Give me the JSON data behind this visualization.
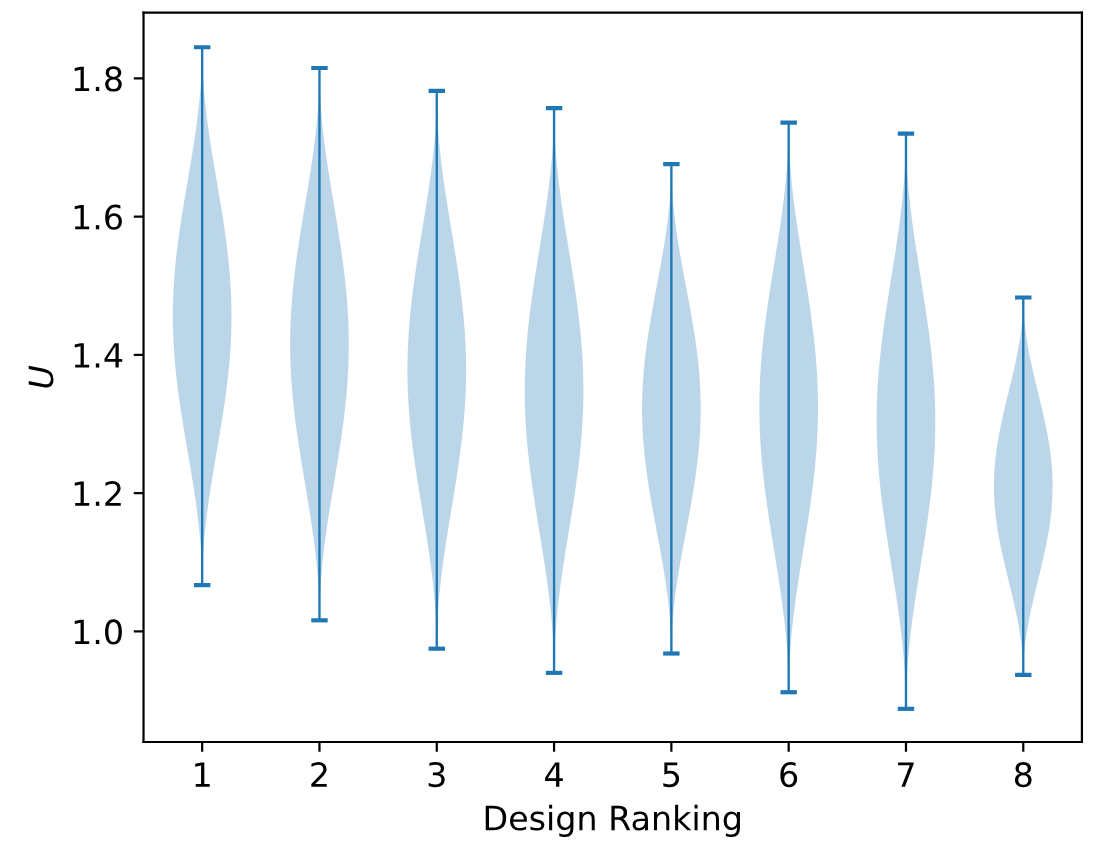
{
  "chart_data": {
    "type": "bar",
    "xlabel": "Design Ranking",
    "ylabel": "U",
    "categories": [
      "1",
      "2",
      "3",
      "4",
      "5",
      "6",
      "7",
      "8"
    ],
    "color": "#1f77b4",
    "base": [
      1.067,
      1.016,
      0.975,
      0.94,
      0.968,
      0.912,
      0.888,
      0.937
    ],
    "values": [
      0.778,
      0.799,
      0.807,
      0.817,
      0.708,
      0.824,
      0.832,
      0.546
    ],
    "ylim": [
      0.84,
      1.895
    ],
    "yticks": [
      {
        "value": 1.0,
        "label": "1.0"
      },
      {
        "value": 1.2,
        "label": "1.2"
      },
      {
        "value": 1.4,
        "label": "1.4"
      },
      {
        "value": 1.6,
        "label": "1.6"
      },
      {
        "value": 1.8,
        "label": "1.8"
      }
    ]
  }
}
